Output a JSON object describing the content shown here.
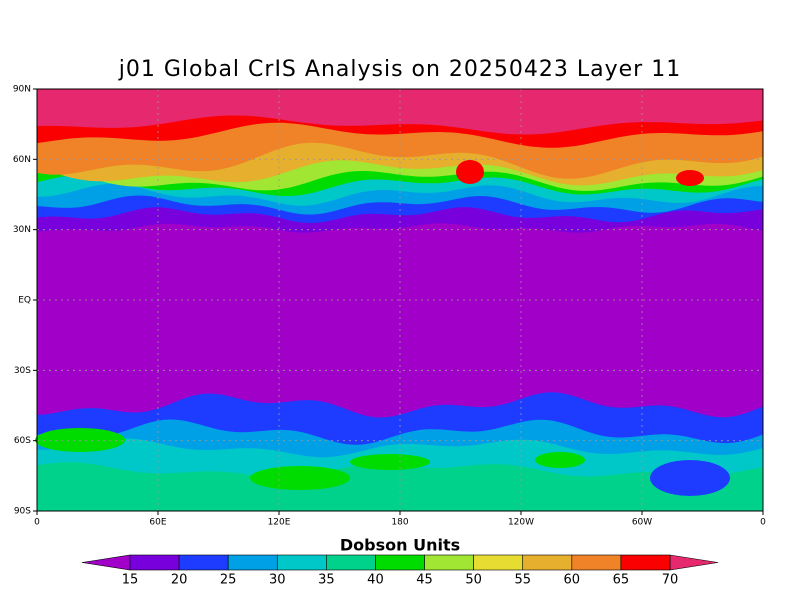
{
  "map": {
    "title": "j01 Global CrIS Analysis on 20250423 Layer 11",
    "lat_ticks": [
      {
        "value": 90,
        "label": "90N"
      },
      {
        "value": 60,
        "label": "60N"
      },
      {
        "value": 30,
        "label": "30N"
      },
      {
        "value": 0,
        "label": "EQ"
      },
      {
        "value": -30,
        "label": "30S"
      },
      {
        "value": -60,
        "label": "60S"
      },
      {
        "value": -90,
        "label": "90S"
      }
    ],
    "lon_ticks": [
      0,
      {
        "value": 60,
        "label": "60E"
      },
      {
        "value": 120,
        "label": "120E"
      },
      180,
      {
        "value": 240,
        "label": "120W"
      },
      {
        "value": 300,
        "label": "60W"
      },
      {
        "value": 360,
        "label": "0"
      }
    ],
    "colorbar": {
      "label": "Dobson Units",
      "levels": [
        15,
        20,
        25,
        30,
        35,
        40,
        45,
        50,
        55,
        60,
        65,
        70
      ],
      "colors": [
        "#a000c8",
        "#7800dc",
        "#1e3cff",
        "#00a0e6",
        "#00c8c8",
        "#00d28c",
        "#00dc00",
        "#a0e632",
        "#e6dc32",
        "#e6af2d",
        "#f08228",
        "#fa0000",
        "#e6286e"
      ]
    }
  }
}
